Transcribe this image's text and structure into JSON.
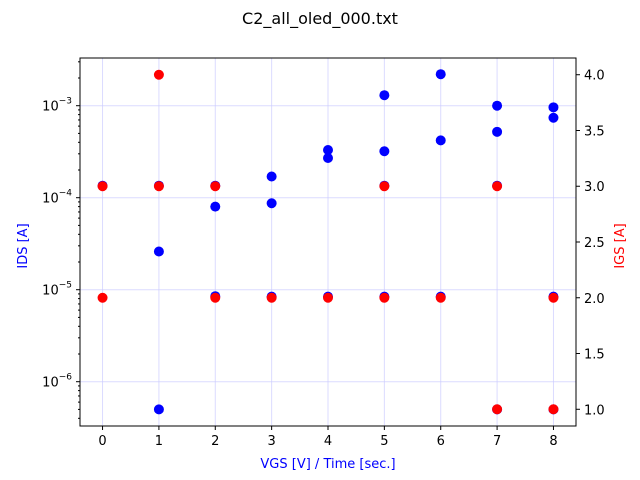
{
  "chart_data": {
    "type": "scatter",
    "title": "C2_all_oled_000.txt",
    "xlabel": "VGS [V] / Time [sec.]",
    "ylabel_left": "IDS [A]",
    "ylabel_right": "IGS [A]",
    "x_ticks": [
      0,
      1,
      2,
      3,
      4,
      5,
      6,
      7,
      8
    ],
    "xlim": [
      -0.4,
      8.4
    ],
    "left_axis": {
      "scale": "log",
      "ylim": [
        3.3e-07,
        0.0033
      ],
      "ticks": [
        {
          "value": 1e-06,
          "base": "10",
          "exp": "−6"
        },
        {
          "value": 1e-05,
          "base": "10",
          "exp": "−5"
        },
        {
          "value": 0.0001,
          "base": "10",
          "exp": "−4"
        },
        {
          "value": 0.001,
          "base": "10",
          "exp": "−3"
        }
      ]
    },
    "right_axis": {
      "scale": "linear",
      "ylim": [
        0.85,
        4.15
      ],
      "ticks": [
        "1.0",
        "1.5",
        "2.0",
        "2.5",
        "3.0",
        "3.5",
        "4.0"
      ]
    },
    "grid": true,
    "series": [
      {
        "axis": "left",
        "color": "#0000ff",
        "points": [
          [
            0,
            0.000135
          ],
          [
            1,
            0.000135
          ],
          [
            1,
            2.6e-05
          ],
          [
            1,
            5e-07
          ],
          [
            2,
            0.000135
          ],
          [
            2,
            8e-05
          ],
          [
            2,
            8.5e-06
          ],
          [
            3,
            0.00017
          ],
          [
            3,
            8.7e-05
          ],
          [
            3,
            8.4e-06
          ],
          [
            4,
            0.00033
          ],
          [
            4,
            0.00027
          ],
          [
            4,
            8.4e-06
          ],
          [
            5,
            0.0013
          ],
          [
            5,
            0.00032
          ],
          [
            5,
            0.000135
          ],
          [
            5,
            8.4e-06
          ],
          [
            6,
            0.0022
          ],
          [
            6,
            0.00042
          ],
          [
            6,
            8.4e-06
          ],
          [
            7,
            0.001
          ],
          [
            7,
            0.00052
          ],
          [
            7,
            0.000135
          ],
          [
            7,
            5e-07
          ],
          [
            8,
            0.00096
          ],
          [
            8,
            0.00074
          ],
          [
            8,
            8.4e-06
          ],
          [
            8,
            5e-07
          ]
        ]
      },
      {
        "axis": "right",
        "color": "#ff0000",
        "points": [
          [
            0,
            3.0
          ],
          [
            0,
            2.0
          ],
          [
            1,
            4.0
          ],
          [
            1,
            3.0
          ],
          [
            2,
            3.0
          ],
          [
            2,
            2.0
          ],
          [
            3,
            2.0
          ],
          [
            4,
            2.0
          ],
          [
            5,
            3.0
          ],
          [
            5,
            2.0
          ],
          [
            6,
            2.0
          ],
          [
            7,
            3.0
          ],
          [
            7,
            1.0
          ],
          [
            8,
            2.0
          ],
          [
            8,
            1.0
          ]
        ]
      }
    ]
  }
}
